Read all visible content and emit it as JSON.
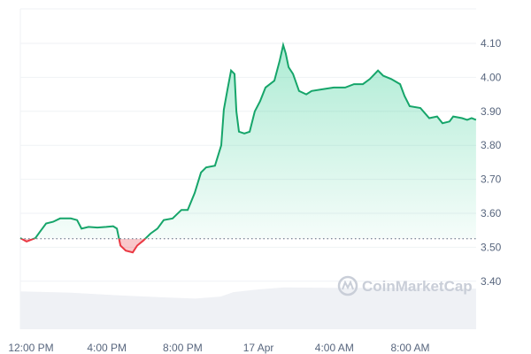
{
  "chart_data": {
    "type": "area",
    "title": "",
    "xlabel": "",
    "ylabel": "",
    "x_tick_labels": [
      "12:00 PM",
      "4:00 PM",
      "8:00 PM",
      "17 Apr",
      "4:00 AM",
      "8:00 AM"
    ],
    "y_tick_labels": [
      "4.10",
      "4.00",
      "3.90",
      "3.80",
      "3.70",
      "3.60",
      "3.50",
      "3.40"
    ],
    "ylim": [
      3.27,
      4.2
    ],
    "reference_price": 3.525,
    "grid": true,
    "colors": {
      "up": "#16c784",
      "up_line": "#16a56a",
      "down": "#ea3943",
      "volume": "#eff1f5",
      "grid": "#eff2f5"
    },
    "watermark": "CoinMarketCap",
    "price_series": [
      [
        "Apr 16 11:26",
        3.527
      ],
      [
        "Apr 16 11:46",
        3.517
      ],
      [
        "Apr 16 12:14",
        3.527
      ],
      [
        "Apr 16 12:28",
        3.545
      ],
      [
        "Apr 16 12:48",
        3.57
      ],
      [
        "Apr 16 13:10",
        3.575
      ],
      [
        "Apr 16 13:32",
        3.585
      ],
      [
        "Apr 16 14:06",
        3.585
      ],
      [
        "Apr 16 14:26",
        3.58
      ],
      [
        "Apr 16 14:40",
        3.555
      ],
      [
        "Apr 16 15:02",
        3.56
      ],
      [
        "Apr 16 15:30",
        3.558
      ],
      [
        "Apr 16 15:58",
        3.56
      ],
      [
        "Apr 16 16:20",
        3.562
      ],
      [
        "Apr 16 16:32",
        3.555
      ],
      [
        "Apr 16 16:43",
        3.505
      ],
      [
        "Apr 16 17:00",
        3.49
      ],
      [
        "Apr 16 17:22",
        3.485
      ],
      [
        "Apr 16 17:36",
        3.505
      ],
      [
        "Apr 16 17:56",
        3.52
      ],
      [
        "Apr 16 18:18",
        3.54
      ],
      [
        "Apr 16 18:40",
        3.555
      ],
      [
        "Apr 16 19:00",
        3.58
      ],
      [
        "Apr 16 19:28",
        3.585
      ],
      [
        "Apr 16 19:56",
        3.61
      ],
      [
        "Apr 16 20:16",
        3.61
      ],
      [
        "Apr 16 20:38",
        3.66
      ],
      [
        "Apr 16 20:58",
        3.72
      ],
      [
        "Apr 16 21:14",
        3.735
      ],
      [
        "Apr 16 21:42",
        3.74
      ],
      [
        "Apr 16 22:02",
        3.8
      ],
      [
        "Apr 16 22:10",
        3.905
      ],
      [
        "Apr 16 22:22",
        3.965
      ],
      [
        "Apr 16 22:33",
        4.02
      ],
      [
        "Apr 16 22:44",
        4.01
      ],
      [
        "Apr 16 22:50",
        3.9
      ],
      [
        "Apr 16 22:58",
        3.84
      ],
      [
        "Apr 16 23:15",
        3.835
      ],
      [
        "Apr 16 23:32",
        3.84
      ],
      [
        "Apr 16 23:48",
        3.9
      ],
      [
        "Apr 17 00:05",
        3.93
      ],
      [
        "Apr 17 00:22",
        3.97
      ],
      [
        "Apr 17 00:50",
        3.99
      ],
      [
        "Apr 17 01:07",
        4.05
      ],
      [
        "Apr 17 01:18",
        4.095
      ],
      [
        "Apr 17 01:26",
        4.07
      ],
      [
        "Apr 17 01:35",
        4.03
      ],
      [
        "Apr 17 01:49",
        4.01
      ],
      [
        "Apr 17 02:08",
        3.96
      ],
      [
        "Apr 17 02:31",
        3.95
      ],
      [
        "Apr 17 02:48",
        3.96
      ],
      [
        "Apr 17 03:24",
        3.965
      ],
      [
        "Apr 17 03:58",
        3.97
      ],
      [
        "Apr 17 04:34",
        3.97
      ],
      [
        "Apr 17 05:02",
        3.98
      ],
      [
        "Apr 17 05:30",
        3.98
      ],
      [
        "Apr 17 05:52",
        3.995
      ],
      [
        "Apr 17 06:18",
        4.02
      ],
      [
        "Apr 17 06:34",
        4.005
      ],
      [
        "Apr 17 07:00",
        3.995
      ],
      [
        "Apr 17 07:28",
        3.98
      ],
      [
        "Apr 17 07:42",
        3.945
      ],
      [
        "Apr 17 07:58",
        3.915
      ],
      [
        "Apr 17 08:32",
        3.91
      ],
      [
        "Apr 17 09:00",
        3.88
      ],
      [
        "Apr 17 09:25",
        3.885
      ],
      [
        "Apr 17 09:42",
        3.865
      ],
      [
        "Apr 17 10:04",
        3.87
      ],
      [
        "Apr 17 10:16",
        3.885
      ],
      [
        "Apr 17 10:44",
        3.88
      ],
      [
        "Apr 17 11:00",
        3.875
      ],
      [
        "Apr 17 11:14",
        3.88
      ],
      [
        "Apr 17 11:28",
        3.875
      ]
    ],
    "volume_relative": [
      [
        "Apr 16 11:26",
        0.95
      ],
      [
        "Apr 16 14:00",
        0.92
      ],
      [
        "Apr 16 16:40",
        0.85
      ],
      [
        "Apr 16 19:00",
        0.8
      ],
      [
        "Apr 16 20:40",
        0.77
      ],
      [
        "Apr 16 22:00",
        0.82
      ],
      [
        "Apr 16 22:40",
        0.93
      ],
      [
        "Apr 17 00:00",
        1.0
      ],
      [
        "Apr 17 01:20",
        1.05
      ],
      [
        "Apr 17 04:00",
        1.04
      ],
      [
        "Apr 17 08:00",
        1.04
      ],
      [
        "Apr 17 11:28",
        1.02
      ]
    ]
  }
}
